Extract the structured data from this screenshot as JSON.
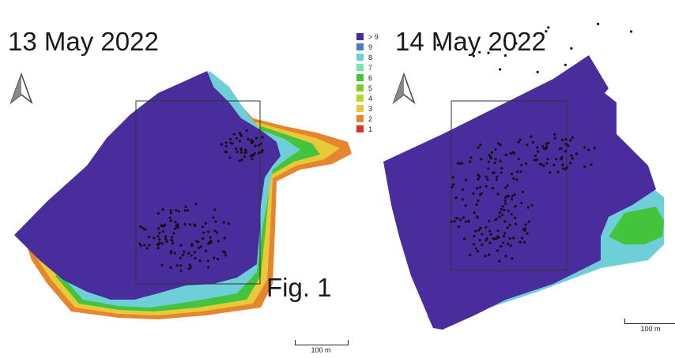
{
  "panels": [
    {
      "date_label": "13 May 2022",
      "scale_label": "100 m"
    },
    {
      "date_label": "14 May 2022",
      "scale_label": "100 m"
    }
  ],
  "figure_label": "Fig. 1",
  "legend": [
    {
      "label": "> 9",
      "color": "#4a2d9c"
    },
    {
      "label": "9",
      "color": "#4a7cc4"
    },
    {
      "label": "8",
      "color": "#6fcfd8"
    },
    {
      "label": "7",
      "color": "#7fe0b0"
    },
    {
      "label": "6",
      "color": "#44c43c"
    },
    {
      "label": "5",
      "color": "#7dcb2a"
    },
    {
      "label": "4",
      "color": "#b9d62a"
    },
    {
      "label": "3",
      "color": "#e8c93a"
    },
    {
      "label": "2",
      "color": "#e5862e"
    },
    {
      "label": "1",
      "color": "#e0302a"
    }
  ],
  "icons": {
    "north_arrow": "north-arrow-icon"
  }
}
